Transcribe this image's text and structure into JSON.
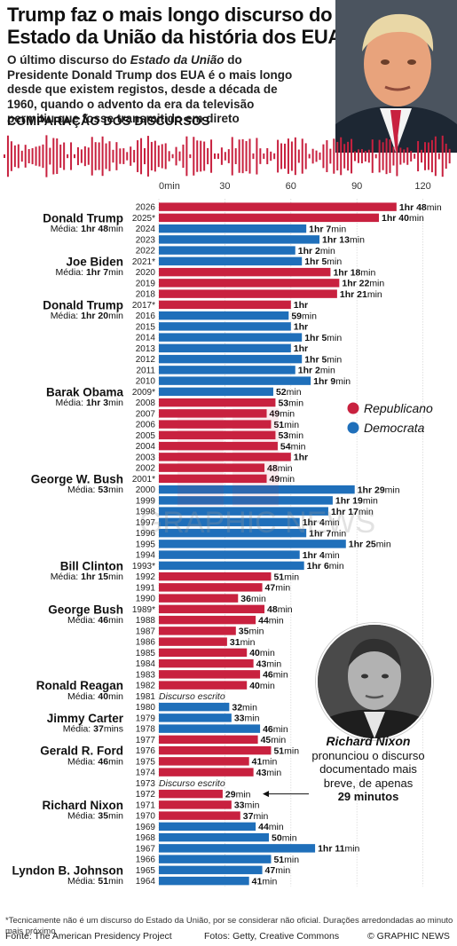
{
  "title": "Trump faz o mais longo discurso do Estado da União da história dos EUA",
  "subtitle_parts": [
    {
      "text": "O último discurso do ",
      "italic": false
    },
    {
      "text": "Estado da União",
      "italic": true
    },
    {
      "text": " do Presidente Donald Trump dos EUA é o mais longo desde que existem registos, desde a década de 1960, quando o advento da era da televisão permitiu que fosse transmitido em direto",
      "italic": false
    }
  ],
  "section_title": "COMPARAÇÃO DOS DISCURSOS",
  "legend": [
    {
      "label": "Republicano",
      "color": "#c8213f"
    },
    {
      "label": "Democrata",
      "color": "#1f6fba"
    }
  ],
  "watermark": "GRAPHIC NEWS",
  "nixon_note": {
    "name": "Richard Nixon",
    "text": "pronunciou o discurso documentado mais breve, de apenas",
    "emphasis": "29 minutos"
  },
  "footnote": "*Tecnicamente não é um discurso do Estado da União, por se considerar não oficial. Durações arredondadas ao minuto mais próximo",
  "source_left": "Fonte: The American Presidency Project",
  "source_mid": "Fotos: Getty, Creative Commons",
  "source_right": "© GRAPHIC NEWS",
  "chart_data": {
    "type": "bar",
    "orientation": "horizontal",
    "x_ticks": [
      "0min",
      "30",
      "60",
      "90",
      "120"
    ],
    "x_tick_values": [
      0,
      30,
      60,
      90,
      120
    ],
    "xlim": [
      0,
      120
    ],
    "colors": {
      "R": "#c8213f",
      "D": "#1f6fba",
      "R_light": "#e78fa0"
    },
    "rows": [
      {
        "year": "2026",
        "minutes": 108,
        "party": "R",
        "label": [
          "1hr ",
          "48",
          "min"
        ]
      },
      {
        "year": "2025*",
        "minutes": 100,
        "party": "R",
        "label": [
          "1hr ",
          "40",
          "min"
        ]
      },
      {
        "year": "2024",
        "minutes": 67,
        "party": "D",
        "label": [
          "1hr ",
          "7",
          "min"
        ]
      },
      {
        "year": "2023",
        "minutes": 73,
        "party": "D",
        "label": [
          "1hr ",
          "13",
          "min"
        ]
      },
      {
        "year": "2022",
        "minutes": 62,
        "party": "D",
        "label": [
          "1hr ",
          "2",
          "min"
        ]
      },
      {
        "year": "2021*",
        "minutes": 65,
        "party": "D",
        "label": [
          "1hr ",
          "5",
          "min"
        ]
      },
      {
        "year": "2020",
        "minutes": 78,
        "party": "R",
        "label": [
          "1hr ",
          "18",
          "min"
        ]
      },
      {
        "year": "2019",
        "minutes": 82,
        "party": "R",
        "label": [
          "1hr ",
          "22",
          "min"
        ]
      },
      {
        "year": "2018",
        "minutes": 81,
        "party": "R",
        "label": [
          "1hr ",
          "21",
          "min"
        ]
      },
      {
        "year": "2017*",
        "minutes": 60,
        "party": "R",
        "label": [
          "1hr",
          "",
          ""
        ]
      },
      {
        "year": "2016",
        "minutes": 59,
        "party": "D",
        "label": [
          "",
          "59",
          "min"
        ]
      },
      {
        "year": "2015",
        "minutes": 60,
        "party": "D",
        "label": [
          "1hr",
          "",
          ""
        ]
      },
      {
        "year": "2014",
        "minutes": 65,
        "party": "D",
        "label": [
          "1hr ",
          "5",
          "min"
        ]
      },
      {
        "year": "2013",
        "minutes": 60,
        "party": "D",
        "label": [
          "1hr",
          "",
          ""
        ]
      },
      {
        "year": "2012",
        "minutes": 65,
        "party": "D",
        "label": [
          "1hr ",
          "5",
          "min"
        ]
      },
      {
        "year": "2011",
        "minutes": 62,
        "party": "D",
        "label": [
          "1hr ",
          "2",
          "min"
        ]
      },
      {
        "year": "2010",
        "minutes": 69,
        "party": "D",
        "label": [
          "1hr ",
          "9",
          "min"
        ]
      },
      {
        "year": "2009*",
        "minutes": 52,
        "party": "D",
        "label": [
          "",
          "52",
          "min"
        ]
      },
      {
        "year": "2008",
        "minutes": 53,
        "party": "R",
        "label": [
          "",
          "53",
          "min"
        ]
      },
      {
        "year": "2007",
        "minutes": 49,
        "party": "R",
        "label": [
          "",
          "49",
          "min"
        ]
      },
      {
        "year": "2006",
        "minutes": 51,
        "party": "R",
        "label": [
          "",
          "51",
          "min"
        ]
      },
      {
        "year": "2005",
        "minutes": 53,
        "party": "R",
        "label": [
          "",
          "53",
          "min"
        ]
      },
      {
        "year": "2004",
        "minutes": 54,
        "party": "R",
        "label": [
          "",
          "54",
          "min"
        ]
      },
      {
        "year": "2003",
        "minutes": 60,
        "party": "R",
        "label": [
          "1hr",
          "",
          ""
        ]
      },
      {
        "year": "2002",
        "minutes": 48,
        "party": "R",
        "label": [
          "",
          "48",
          "min"
        ]
      },
      {
        "year": "2001*",
        "minutes": 49,
        "party": "R",
        "label": [
          "",
          "49",
          "min"
        ]
      },
      {
        "year": "2000",
        "minutes": 89,
        "party": "D",
        "label": [
          "1hr ",
          "29",
          "min"
        ]
      },
      {
        "year": "1999",
        "minutes": 79,
        "party": "D",
        "label": [
          "1hr ",
          "19",
          "min"
        ]
      },
      {
        "year": "1998",
        "minutes": 77,
        "party": "D",
        "label": [
          "1hr ",
          "17",
          "min"
        ]
      },
      {
        "year": "1997",
        "minutes": 64,
        "party": "D",
        "label": [
          "1hr ",
          "4",
          "min"
        ]
      },
      {
        "year": "1996",
        "minutes": 67,
        "party": "D",
        "label": [
          "1hr ",
          "7",
          "min"
        ]
      },
      {
        "year": "1995",
        "minutes": 85,
        "party": "D",
        "label": [
          "1hr ",
          "25",
          "min"
        ]
      },
      {
        "year": "1994",
        "minutes": 64,
        "party": "D",
        "label": [
          "1hr ",
          "4",
          "min"
        ]
      },
      {
        "year": "1993*",
        "minutes": 66,
        "party": "D",
        "label": [
          "1hr ",
          "6",
          "min"
        ]
      },
      {
        "year": "1992",
        "minutes": 51,
        "party": "R",
        "label": [
          "",
          "51",
          "min"
        ]
      },
      {
        "year": "1991",
        "minutes": 47,
        "party": "R",
        "label": [
          "",
          "47",
          "min"
        ]
      },
      {
        "year": "1990",
        "minutes": 36,
        "party": "R",
        "label": [
          "",
          "36",
          "min"
        ]
      },
      {
        "year": "1989*",
        "minutes": 48,
        "party": "R",
        "label": [
          "",
          "48",
          "min"
        ]
      },
      {
        "year": "1988",
        "minutes": 44,
        "party": "R",
        "label": [
          "",
          "44",
          "min"
        ]
      },
      {
        "year": "1987",
        "minutes": 35,
        "party": "R",
        "label": [
          "",
          "35",
          "min"
        ]
      },
      {
        "year": "1986",
        "minutes": 31,
        "party": "R",
        "label": [
          "",
          "31",
          "min"
        ]
      },
      {
        "year": "1985",
        "minutes": 40,
        "party": "R",
        "label": [
          "",
          "40",
          "min"
        ]
      },
      {
        "year": "1984",
        "minutes": 43,
        "party": "R",
        "label": [
          "",
          "43",
          "min"
        ]
      },
      {
        "year": "1983",
        "minutes": 46,
        "party": "R",
        "label": [
          "",
          "46",
          "min"
        ]
      },
      {
        "year": "1982",
        "minutes": 40,
        "party": "R",
        "label": [
          "",
          "40",
          "min"
        ]
      },
      {
        "year": "1981",
        "minutes": 0,
        "party": "R",
        "note": "Discurso escrito"
      },
      {
        "year": "1980",
        "minutes": 32,
        "party": "D",
        "label": [
          "",
          "32",
          "min"
        ]
      },
      {
        "year": "1979",
        "minutes": 33,
        "party": "D",
        "label": [
          "",
          "33",
          "min"
        ]
      },
      {
        "year": "1978",
        "minutes": 46,
        "party": "D",
        "label": [
          "",
          "46",
          "min"
        ]
      },
      {
        "year": "1977",
        "minutes": 45,
        "party": "R",
        "label": [
          "",
          "45",
          "min"
        ]
      },
      {
        "year": "1976",
        "minutes": 51,
        "party": "R",
        "label": [
          "",
          "51",
          "min"
        ]
      },
      {
        "year": "1975",
        "minutes": 41,
        "party": "R",
        "label": [
          "",
          "41",
          "min"
        ]
      },
      {
        "year": "1974",
        "minutes": 43,
        "party": "R",
        "label": [
          "",
          "43",
          "min"
        ]
      },
      {
        "year": "1973",
        "minutes": 0,
        "party": "R",
        "note": "Discurso escrito"
      },
      {
        "year": "1972",
        "minutes": 29,
        "party": "R",
        "label": [
          "",
          "29",
          "min"
        ]
      },
      {
        "year": "1971",
        "minutes": 33,
        "party": "R",
        "label": [
          "",
          "33",
          "min"
        ]
      },
      {
        "year": "1970",
        "minutes": 37,
        "party": "R",
        "label": [
          "",
          "37",
          "min"
        ]
      },
      {
        "year": "1969",
        "minutes": 44,
        "party": "D",
        "label": [
          "",
          "44",
          "min"
        ]
      },
      {
        "year": "1968",
        "minutes": 50,
        "party": "D",
        "label": [
          "",
          "50",
          "min"
        ]
      },
      {
        "year": "1967",
        "minutes": 71,
        "party": "D",
        "label": [
          "1hr ",
          "11",
          "min"
        ]
      },
      {
        "year": "1966",
        "minutes": 51,
        "party": "D",
        "label": [
          "",
          "51",
          "min"
        ]
      },
      {
        "year": "1965",
        "minutes": 47,
        "party": "D",
        "label": [
          "",
          "47",
          "min"
        ]
      },
      {
        "year": "1964",
        "minutes": 41,
        "party": "D",
        "label": [
          "",
          "41",
          "min"
        ]
      }
    ],
    "presidents": [
      {
        "name": "Donald Trump",
        "avg_prefix": "Média: ",
        "avg_parts": [
          "1hr ",
          "48",
          "min"
        ],
        "row_name": 1,
        "row_avg": 2
      },
      {
        "name": "Joe Biden",
        "avg_prefix": "Média: ",
        "avg_parts": [
          "1hr ",
          "7",
          "min"
        ],
        "row_name": 5,
        "row_avg": 6
      },
      {
        "name": "Donald Trump",
        "avg_prefix": "Média: ",
        "avg_parts": [
          "1hr ",
          "20",
          "min"
        ],
        "row_name": 9,
        "row_avg": 10
      },
      {
        "name": "Barak Obama",
        "avg_prefix": "Média: ",
        "avg_parts": [
          "1hr ",
          "3",
          "min"
        ],
        "row_name": 17,
        "row_avg": 18
      },
      {
        "name": "George W. Bush",
        "avg_prefix": "Média: ",
        "avg_parts": [
          "",
          "53",
          "min"
        ],
        "row_name": 25,
        "row_avg": 26
      },
      {
        "name": "Bill Clinton",
        "avg_prefix": "Média: ",
        "avg_parts": [
          "1hr ",
          "15",
          "min"
        ],
        "row_name": 33,
        "row_avg": 34
      },
      {
        "name": "George Bush",
        "avg_prefix": "Média: ",
        "avg_parts": [
          "",
          "46",
          "min"
        ],
        "row_name": 37,
        "row_avg": 38
      },
      {
        "name": "Ronald Reagan",
        "avg_prefix": "Média: ",
        "avg_parts": [
          "",
          "40",
          "min"
        ],
        "row_name": 44,
        "row_avg": 45
      },
      {
        "name": "Jimmy Carter",
        "avg_prefix": "Média: ",
        "avg_parts": [
          "",
          "37",
          "mins"
        ],
        "row_name": 47,
        "row_avg": 48
      },
      {
        "name": "Gerald R. Ford",
        "avg_prefix": "Média: ",
        "avg_parts": [
          "",
          "46",
          "min"
        ],
        "row_name": 50,
        "row_avg": 51
      },
      {
        "name": "Richard Nixon",
        "avg_prefix": "Média: ",
        "avg_parts": [
          "",
          "35",
          "min"
        ],
        "row_name": 55,
        "row_avg": 56
      },
      {
        "name": "Lyndon B. Johnson",
        "avg_prefix": "Média: ",
        "avg_parts": [
          "",
          "51",
          "min"
        ],
        "row_name": 61,
        "row_avg": 62
      }
    ]
  }
}
